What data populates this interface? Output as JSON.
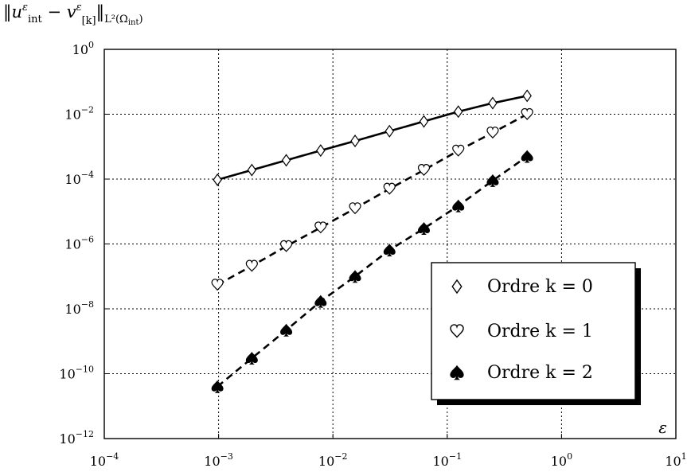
{
  "chart_data": {
    "type": "line",
    "title": "",
    "ylabel": "‖u^ε_int − v^ε_[k]‖_{L²(Ω_int)}",
    "xlabel": "ε",
    "xscale": "log",
    "yscale": "log",
    "xlim": [
      0.0001,
      10
    ],
    "ylim": [
      1e-12,
      1
    ],
    "grid": true,
    "legend_position": "bottom-right",
    "x_ticks": [
      {
        "base": "10",
        "exp": "−4"
      },
      {
        "base": "10",
        "exp": "−3"
      },
      {
        "base": "10",
        "exp": "−2"
      },
      {
        "base": "10",
        "exp": "−1"
      },
      {
        "base": "10",
        "exp": "0"
      },
      {
        "base": "10",
        "exp": "1"
      }
    ],
    "y_ticks": [
      {
        "base": "10",
        "exp": "0"
      },
      {
        "base": "10",
        "exp": "−2"
      },
      {
        "base": "10",
        "exp": "−4"
      },
      {
        "base": "10",
        "exp": "−6"
      },
      {
        "base": "10",
        "exp": "−8"
      },
      {
        "base": "10",
        "exp": "−10"
      },
      {
        "base": "10",
        "exp": "−12"
      }
    ],
    "x": [
      0.0009765625,
      0.001953125,
      0.00390625,
      0.0078125,
      0.015625,
      0.03125,
      0.0625,
      0.125,
      0.25,
      0.5
    ],
    "series": [
      {
        "name": "Ordre k = 0",
        "marker": "diamond-open",
        "line": "solid",
        "values": [
          9.5e-05,
          0.00019,
          0.00038,
          0.00076,
          0.0015,
          0.003,
          0.006,
          0.012,
          0.022,
          0.037
        ]
      },
      {
        "name": "Ordre k = 1",
        "marker": "heart-open",
        "line": "dashed",
        "values": [
          5.5e-08,
          2.1e-07,
          8.5e-07,
          3.2e-06,
          1.25e-05,
          5e-05,
          0.00019,
          0.00075,
          0.0027,
          0.01
        ]
      },
      {
        "name": "Ordre k = 2",
        "marker": "spade-filled",
        "line": "dashed",
        "values": [
          4e-11,
          3e-10,
          2.2e-09,
          1.7e-08,
          1e-07,
          6.5e-07,
          3e-06,
          1.5e-05,
          9e-05,
          0.0005
        ]
      }
    ]
  }
}
